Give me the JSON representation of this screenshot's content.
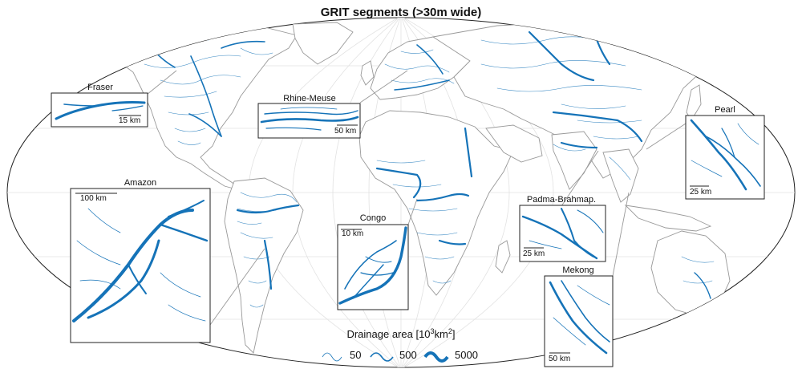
{
  "title": "GRIT segments (>30m wide)",
  "insets": [
    {
      "id": "fraser",
      "name": "Fraser",
      "scale": "15 km"
    },
    {
      "id": "rhine",
      "name": "Rhine-Meuse",
      "scale": "50 km"
    },
    {
      "id": "pearl",
      "name": "Pearl",
      "scale": "25 km"
    },
    {
      "id": "amazon",
      "name": "Amazon",
      "scale": "100 km"
    },
    {
      "id": "congo",
      "name": "Congo",
      "scale": "10 km"
    },
    {
      "id": "padma",
      "name": "Padma-Brahmap.",
      "scale": "25 km"
    },
    {
      "id": "mekong",
      "name": "Mekong",
      "scale": "50 km"
    }
  ],
  "legend": {
    "title_main": "Drainage area [10",
    "title_sup": "3",
    "title_end": "km",
    "title_sup2": "2",
    "title_close": "]",
    "items": [
      {
        "label": "50",
        "weight": 0.8
      },
      {
        "label": "500",
        "weight": 1.6
      },
      {
        "label": "5000",
        "weight": 4
      }
    ]
  },
  "colors": {
    "river": "#0f6fb5",
    "coast": "#9a9a9a",
    "graticule": "#dedede",
    "frame": "#222222"
  }
}
